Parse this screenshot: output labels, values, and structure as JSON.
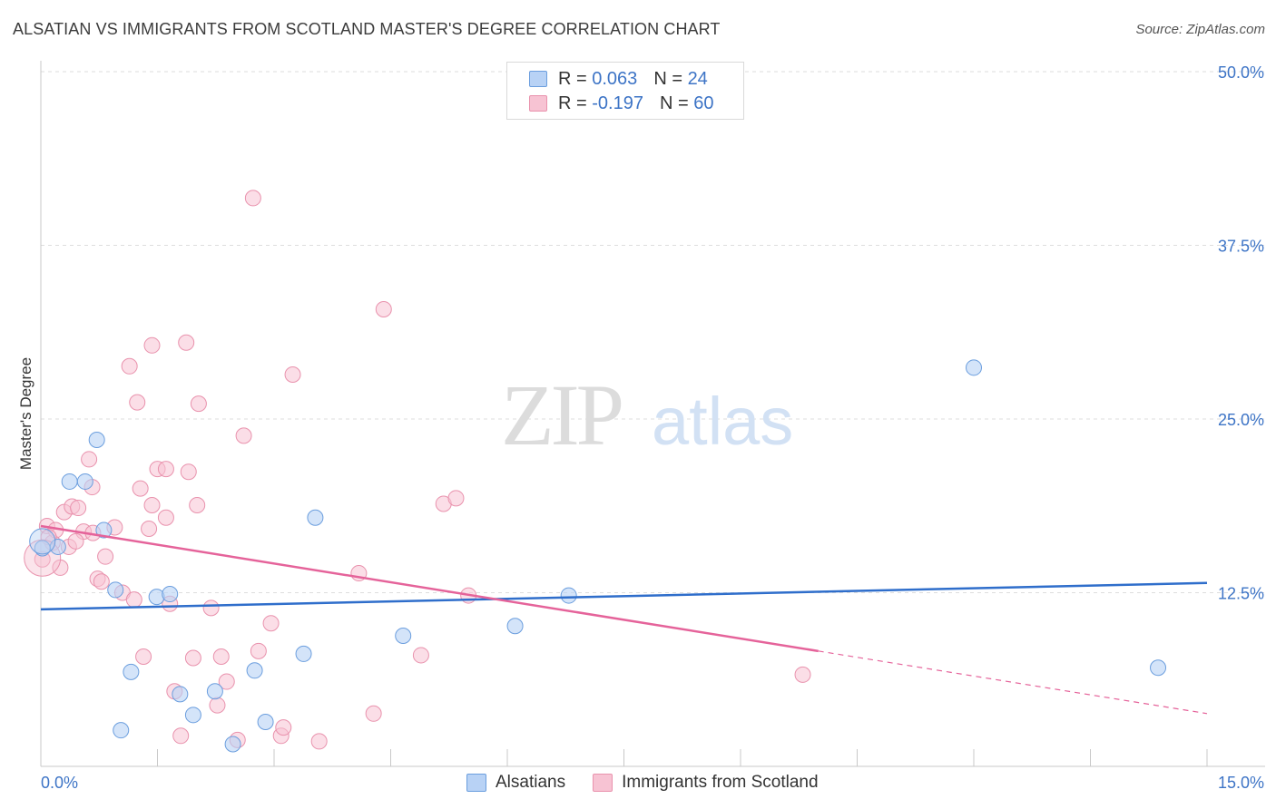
{
  "title": "ALSATIAN VS IMMIGRANTS FROM SCOTLAND MASTER'S DEGREE CORRELATION CHART",
  "source": "Source: ZipAtlas.com",
  "watermark": {
    "zip": "ZIP",
    "atlas": "atlas"
  },
  "legend": {
    "series1": {
      "r_label": "R =",
      "r_value": "0.063",
      "n_label": "N =",
      "n_value": "24"
    },
    "series2": {
      "r_label": "R =",
      "r_value": "-0.197",
      "n_label": "N =",
      "n_value": "60"
    }
  },
  "colors": {
    "blue_fill": "#b8d2f5",
    "blue_stroke": "#6b9ede",
    "blue_line": "#2f6ecb",
    "pink_fill": "#f7c3d3",
    "pink_stroke": "#e992ad",
    "pink_line": "#e5639a",
    "grid": "#dedede",
    "axis_text": "#3d74c6"
  },
  "chart_data": {
    "type": "scatter",
    "title": "ALSATIAN VS IMMIGRANTS FROM SCOTLAND MASTER'S DEGREE CORRELATION CHART",
    "xlabel": "",
    "ylabel": "Master's Degree",
    "xlim": [
      0,
      15
    ],
    "ylim": [
      0,
      50
    ],
    "x_tick_labels": [
      {
        "value": 0,
        "label": "0.0%"
      },
      {
        "value": 15,
        "label": "15.0%"
      }
    ],
    "y_tick_labels": [
      {
        "value": 12.5,
        "label": "12.5%"
      },
      {
        "value": 25,
        "label": "25.0%"
      },
      {
        "value": 37.5,
        "label": "37.5%"
      },
      {
        "value": 50,
        "label": "50.0%"
      }
    ],
    "series": [
      {
        "name": "Alsatians",
        "color": "#6b9ede",
        "trend": {
          "x0": 0,
          "y0": 11.3,
          "x1": 15,
          "y1": 13.2
        },
        "points": [
          [
            0.02,
            15.7
          ],
          [
            0.22,
            15.8
          ],
          [
            0.37,
            20.5
          ],
          [
            0.57,
            20.5
          ],
          [
            0.72,
            23.5
          ],
          [
            0.81,
            17.0
          ],
          [
            0.96,
            12.7
          ],
          [
            1.16,
            6.8
          ],
          [
            1.03,
            2.6
          ],
          [
            1.49,
            12.2
          ],
          [
            1.66,
            12.4
          ],
          [
            1.79,
            5.2
          ],
          [
            1.96,
            3.7
          ],
          [
            2.24,
            5.4
          ],
          [
            2.47,
            1.6
          ],
          [
            2.75,
            6.9
          ],
          [
            2.89,
            3.2
          ],
          [
            3.38,
            8.1
          ],
          [
            3.53,
            17.9
          ],
          [
            4.66,
            9.4
          ],
          [
            6.1,
            10.1
          ],
          [
            6.79,
            12.3
          ],
          [
            12.0,
            28.7
          ],
          [
            14.37,
            7.1
          ]
        ]
      },
      {
        "name": "Immigrants from Scotland",
        "color": "#e992ad",
        "trend": {
          "x0": 0,
          "y0": 17.3,
          "x1": 10.0,
          "y1": 8.3,
          "dash_to_x": 15,
          "dash_to_y": 3.8
        },
        "points": [
          [
            0.02,
            14.9
          ],
          [
            0.08,
            17.3
          ],
          [
            0.15,
            16.1
          ],
          [
            0.19,
            17.0
          ],
          [
            0.3,
            18.3
          ],
          [
            0.36,
            15.8
          ],
          [
            0.25,
            14.3
          ],
          [
            0.4,
            18.7
          ],
          [
            0.48,
            18.6
          ],
          [
            0.55,
            16.9
          ],
          [
            0.62,
            22.1
          ],
          [
            0.67,
            16.8
          ],
          [
            0.73,
            13.5
          ],
          [
            0.78,
            13.3
          ],
          [
            0.83,
            15.1
          ],
          [
            0.66,
            20.1
          ],
          [
            0.95,
            17.2
          ],
          [
            1.05,
            12.5
          ],
          [
            1.14,
            28.8
          ],
          [
            1.24,
            26.2
          ],
          [
            1.28,
            20.0
          ],
          [
            1.32,
            7.9
          ],
          [
            1.39,
            17.1
          ],
          [
            1.43,
            18.8
          ],
          [
            1.43,
            30.3
          ],
          [
            1.5,
            21.4
          ],
          [
            1.61,
            21.4
          ],
          [
            1.61,
            17.9
          ],
          [
            1.66,
            11.7
          ],
          [
            1.72,
            5.4
          ],
          [
            1.8,
            2.2
          ],
          [
            1.87,
            30.5
          ],
          [
            1.9,
            21.2
          ],
          [
            1.96,
            7.8
          ],
          [
            2.01,
            18.8
          ],
          [
            2.03,
            26.1
          ],
          [
            2.19,
            11.4
          ],
          [
            2.27,
            4.4
          ],
          [
            2.32,
            7.9
          ],
          [
            2.39,
            6.1
          ],
          [
            2.53,
            1.9
          ],
          [
            2.61,
            23.8
          ],
          [
            2.73,
            40.9
          ],
          [
            2.8,
            8.3
          ],
          [
            2.96,
            10.3
          ],
          [
            3.09,
            2.2
          ],
          [
            3.12,
            2.8
          ],
          [
            3.24,
            28.2
          ],
          [
            3.58,
            1.8
          ],
          [
            4.09,
            13.9
          ],
          [
            4.28,
            3.8
          ],
          [
            4.41,
            32.9
          ],
          [
            4.89,
            8.0
          ],
          [
            5.18,
            18.9
          ],
          [
            5.34,
            19.3
          ],
          [
            5.5,
            12.3
          ],
          [
            9.8,
            6.6
          ],
          [
            0.1,
            16.5
          ],
          [
            0.45,
            16.2
          ],
          [
            1.2,
            12.0
          ]
        ]
      }
    ]
  },
  "bottom_legend": [
    {
      "label": "Alsatians"
    },
    {
      "label": "Immigrants from Scotland"
    }
  ]
}
